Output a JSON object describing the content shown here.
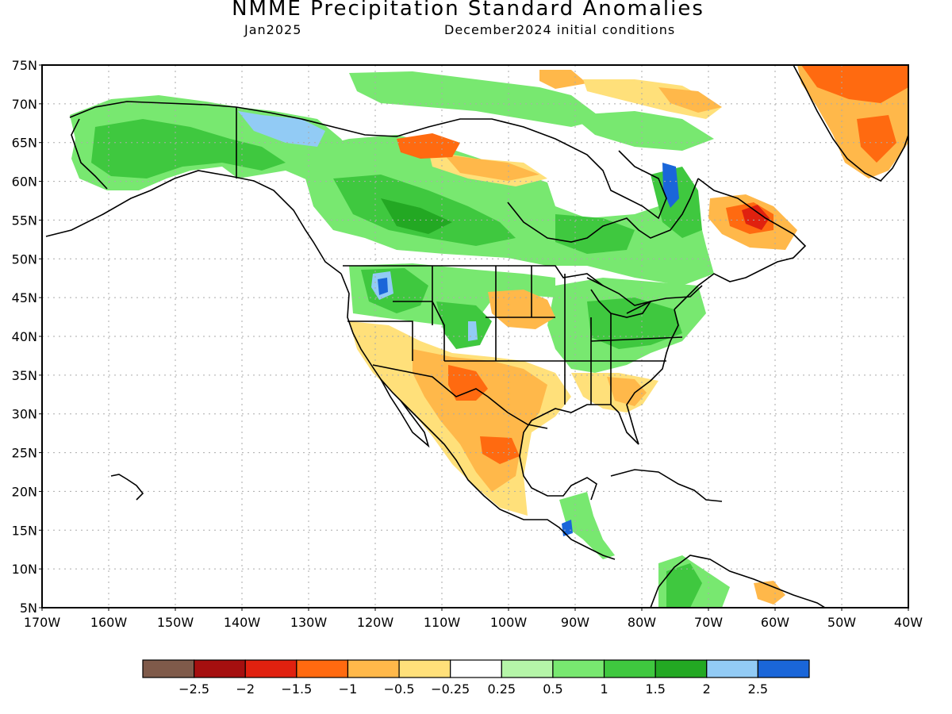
{
  "title": "NMME Precipitation Standard Anomalies",
  "subtitle_left": "Jan2025",
  "subtitle_right": "December2024 initial conditions",
  "map": {
    "lat_labels": [
      "75N",
      "70N",
      "65N",
      "60N",
      "55N",
      "50N",
      "45N",
      "40N",
      "35N",
      "30N",
      "25N",
      "20N",
      "15N",
      "10N",
      "5N"
    ],
    "lon_labels": [
      "170W",
      "160W",
      "150W",
      "140W",
      "130W",
      "120W",
      "110W",
      "100W",
      "90W",
      "80W",
      "70W",
      "60W",
      "50W",
      "40W"
    ]
  },
  "legend": {
    "colors": [
      "#7f5a4a",
      "#a50f0f",
      "#e0210f",
      "#ff6a10",
      "#ffb84a",
      "#ffe07a",
      "#ffffff",
      "#b5f5a8",
      "#78e870",
      "#3fc83f",
      "#23a823",
      "#92cbf5",
      "#1a66d9"
    ],
    "labels": [
      "−2.5",
      "−2",
      "−1.5",
      "−1",
      "−0.5",
      "−0.25",
      "0.25",
      "0.5",
      "1",
      "1.5",
      "2",
      "2.5"
    ]
  },
  "anomaly_colors": {
    "green_light": "#b5f5a8",
    "green": "#78e870",
    "green_mid": "#3fc83f",
    "green_dark": "#23a823",
    "blue_light": "#92cbf5",
    "blue": "#1a66d9",
    "yellow": "#ffe07a",
    "orange_light": "#ffb84a",
    "orange": "#ff6a10",
    "red": "#e0210f"
  }
}
